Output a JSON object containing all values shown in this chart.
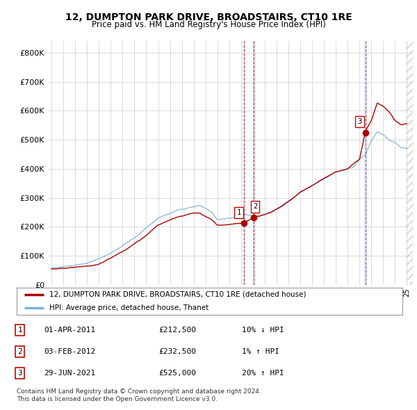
{
  "title": "12, DUMPTON PARK DRIVE, BROADSTAIRS, CT10 1RE",
  "subtitle": "Price paid vs. HM Land Registry's House Price Index (HPI)",
  "legend_line1": "12, DUMPTON PARK DRIVE, BROADSTAIRS, CT10 1RE (detached house)",
  "legend_line2": "HPI: Average price, detached house, Thanet",
  "sale_color": "#aa0000",
  "hpi_color": "#7ab0d4",
  "shade_color": "#ddeeff",
  "transactions": [
    {
      "num": 1,
      "date_label": "01-APR-2011",
      "date_x": 2011.25,
      "price": 212500,
      "pct": "10%",
      "dir": "↓"
    },
    {
      "num": 2,
      "date_label": "03-FEB-2012",
      "date_x": 2012.08,
      "price": 232500,
      "pct": "1%",
      "dir": "↑"
    },
    {
      "num": 3,
      "date_label": "29-JUN-2021",
      "date_x": 2021.5,
      "price": 525000,
      "pct": "20%",
      "dir": "↑"
    }
  ],
  "footnote1": "Contains HM Land Registry data © Crown copyright and database right 2024.",
  "footnote2": "This data is licensed under the Open Government Licence v3.0.",
  "ylim": [
    0,
    840000
  ],
  "xlim_start": 1994.7,
  "xlim_end": 2025.5,
  "background_color": "#ffffff",
  "plot_bg_color": "#ffffff",
  "grid_color": "#cccccc"
}
